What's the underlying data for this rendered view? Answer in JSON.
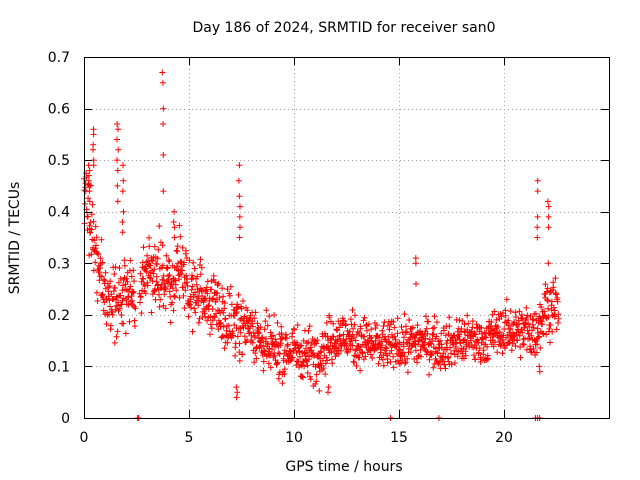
{
  "chart_data": {
    "type": "scatter",
    "title": "Day 186 of 2024, SRMTID for receiver san0",
    "xlabel": "GPS time / hours",
    "ylabel": "SRMTID / TECUs",
    "xlim": [
      0,
      25
    ],
    "ylim": [
      0,
      0.7
    ],
    "xticks": [
      0,
      5,
      10,
      15,
      20
    ],
    "xtick_labels": [
      "0",
      "5",
      "10",
      "15",
      "20"
    ],
    "yticks": [
      0,
      0.1,
      0.2,
      0.3,
      0.4,
      0.5,
      0.6,
      0.7
    ],
    "ytick_labels": [
      "0",
      "0.1",
      "0.2",
      "0.3",
      "0.4",
      "0.5",
      "0.6",
      "0.7"
    ],
    "grid": true,
    "marker": "plus",
    "series_color": "#ff0000",
    "trend": [
      [
        0.0,
        0.43
      ],
      [
        0.4,
        0.36
      ],
      [
        0.8,
        0.27
      ],
      [
        1.2,
        0.21
      ],
      [
        1.6,
        0.22
      ],
      [
        2.0,
        0.27
      ],
      [
        2.4,
        0.23
      ],
      [
        3.0,
        0.29
      ],
      [
        3.5,
        0.28
      ],
      [
        4.0,
        0.26
      ],
      [
        4.5,
        0.29
      ],
      [
        5.0,
        0.25
      ],
      [
        6.0,
        0.22
      ],
      [
        7.0,
        0.19
      ],
      [
        7.5,
        0.18
      ],
      [
        8.0,
        0.18
      ],
      [
        8.5,
        0.14
      ],
      [
        9.0,
        0.13
      ],
      [
        10.0,
        0.13
      ],
      [
        11.0,
        0.12
      ],
      [
        12.0,
        0.16
      ],
      [
        13.0,
        0.15
      ],
      [
        14.0,
        0.14
      ],
      [
        15.0,
        0.14
      ],
      [
        16.0,
        0.15
      ],
      [
        17.0,
        0.14
      ],
      [
        18.0,
        0.15
      ],
      [
        19.0,
        0.15
      ],
      [
        20.0,
        0.17
      ],
      [
        21.0,
        0.17
      ],
      [
        21.5,
        0.16
      ],
      [
        22.0,
        0.22
      ],
      [
        22.6,
        0.21
      ]
    ],
    "spread": [
      [
        0.0,
        0.08
      ],
      [
        1.0,
        0.06
      ],
      [
        2.0,
        0.07
      ],
      [
        5.0,
        0.06
      ],
      [
        8.0,
        0.05
      ],
      [
        12.0,
        0.045
      ],
      [
        20.0,
        0.04
      ],
      [
        22.6,
        0.05
      ]
    ],
    "peaks": [
      {
        "x": 0.25,
        "values": [
          0.45,
          0.47,
          0.48,
          0.49,
          0.46,
          0.44,
          0.42
        ]
      },
      {
        "x": 0.45,
        "values": [
          0.5,
          0.52,
          0.53,
          0.55,
          0.56,
          0.49
        ]
      },
      {
        "x": 1.6,
        "values": [
          0.48,
          0.5,
          0.52,
          0.54,
          0.56,
          0.57,
          0.45,
          0.42
        ]
      },
      {
        "x": 1.85,
        "values": [
          0.44,
          0.46,
          0.49,
          0.4,
          0.38,
          0.36
        ]
      },
      {
        "x": 3.75,
        "values": [
          0.67,
          0.65,
          0.6,
          0.57,
          0.51,
          0.44
        ]
      },
      {
        "x": 4.3,
        "values": [
          0.4,
          0.38,
          0.37,
          0.35
        ]
      },
      {
        "x": 7.4,
        "values": [
          0.49,
          0.46,
          0.43,
          0.41,
          0.39,
          0.37,
          0.35
        ]
      },
      {
        "x": 15.8,
        "values": [
          0.31,
          0.3,
          0.26
        ]
      },
      {
        "x": 21.6,
        "values": [
          0.46,
          0.44,
          0.39,
          0.37,
          0.35
        ]
      },
      {
        "x": 22.1,
        "values": [
          0.42,
          0.41,
          0.39,
          0.37,
          0.3
        ]
      }
    ],
    "dips": [
      {
        "x": 7.3,
        "values": [
          0.04,
          0.05,
          0.06
        ]
      },
      {
        "x": 11.6,
        "values": [
          0.05,
          0.06
        ]
      },
      {
        "x": 21.7,
        "values": [
          0.09,
          0.1
        ]
      }
    ],
    "zero_points": [
      2.55,
      2.6,
      14.6,
      16.9,
      21.5,
      21.6,
      21.7
    ],
    "gaps": [
      [
        2.45,
        2.65
      ]
    ],
    "x_end": 22.6,
    "point_count": 1500
  }
}
